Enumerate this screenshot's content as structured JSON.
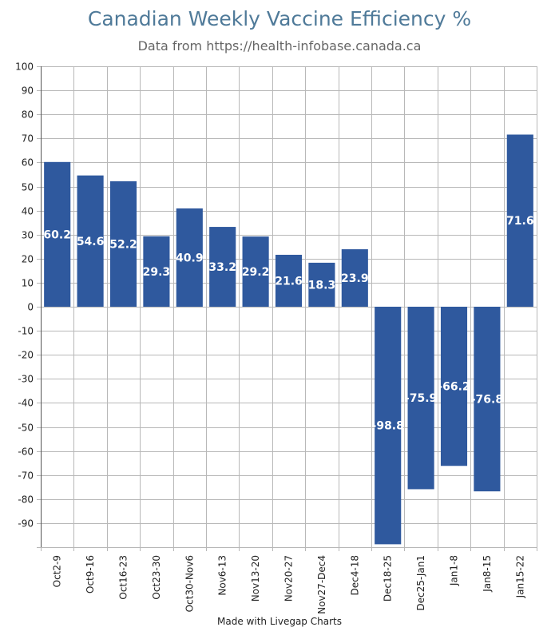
{
  "header": {
    "title": "Canadian Weekly Vaccine Efficiency %",
    "subtitle": "Data from https://health-infobase.canada.ca"
  },
  "footer": {
    "credit": "Made with Livegap Charts"
  },
  "colors": {
    "bar": "#2f599e",
    "grid": "#b8b8b8",
    "axis": "#555555",
    "label": "#ffffff",
    "tick": "#222222"
  },
  "chart_data": {
    "type": "bar",
    "title": "Canadian Weekly Vaccine Efficiency %",
    "subtitle": "Data from https://health-infobase.canada.ca",
    "xlabel": "",
    "ylabel": "",
    "categories": [
      "Oct2-9",
      "Oct9-16",
      "Oct16-23",
      "Oct23-30",
      "Oct30-Nov6",
      "Nov6-13",
      "Nov13-20",
      "Nov20-27",
      "Nov27-Dec4",
      "Dec4-18",
      "Dec18-25",
      "Dec25-Jan1",
      "Jan1-8",
      "Jan8-15",
      "Jan15-22"
    ],
    "values": [
      60.2,
      54.6,
      52.2,
      29.3,
      40.9,
      33.2,
      29.2,
      21.6,
      18.3,
      23.9,
      -98.8,
      -75.9,
      -66.2,
      -76.8,
      71.6
    ],
    "ylim": [
      -100,
      100
    ],
    "yticks": [
      100,
      90,
      80,
      70,
      60,
      50,
      40,
      30,
      20,
      10,
      0,
      -10,
      -20,
      -30,
      -40,
      -50,
      -60,
      -70,
      -80,
      -90
    ],
    "grid": true,
    "data_labels": true
  }
}
